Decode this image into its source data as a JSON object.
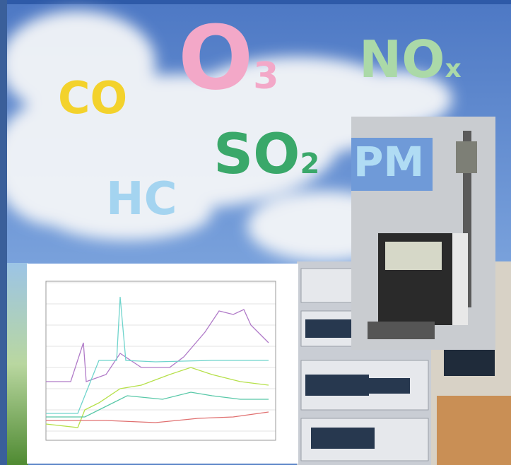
{
  "pollutants": [
    {
      "main": "CO"
    },
    {
      "main": "O",
      "sub": "3"
    },
    {
      "main": "NO",
      "sub": "x"
    },
    {
      "main": "SO",
      "sub": "2"
    },
    {
      "main": "PM"
    },
    {
      "main": "HC"
    }
  ]
}
